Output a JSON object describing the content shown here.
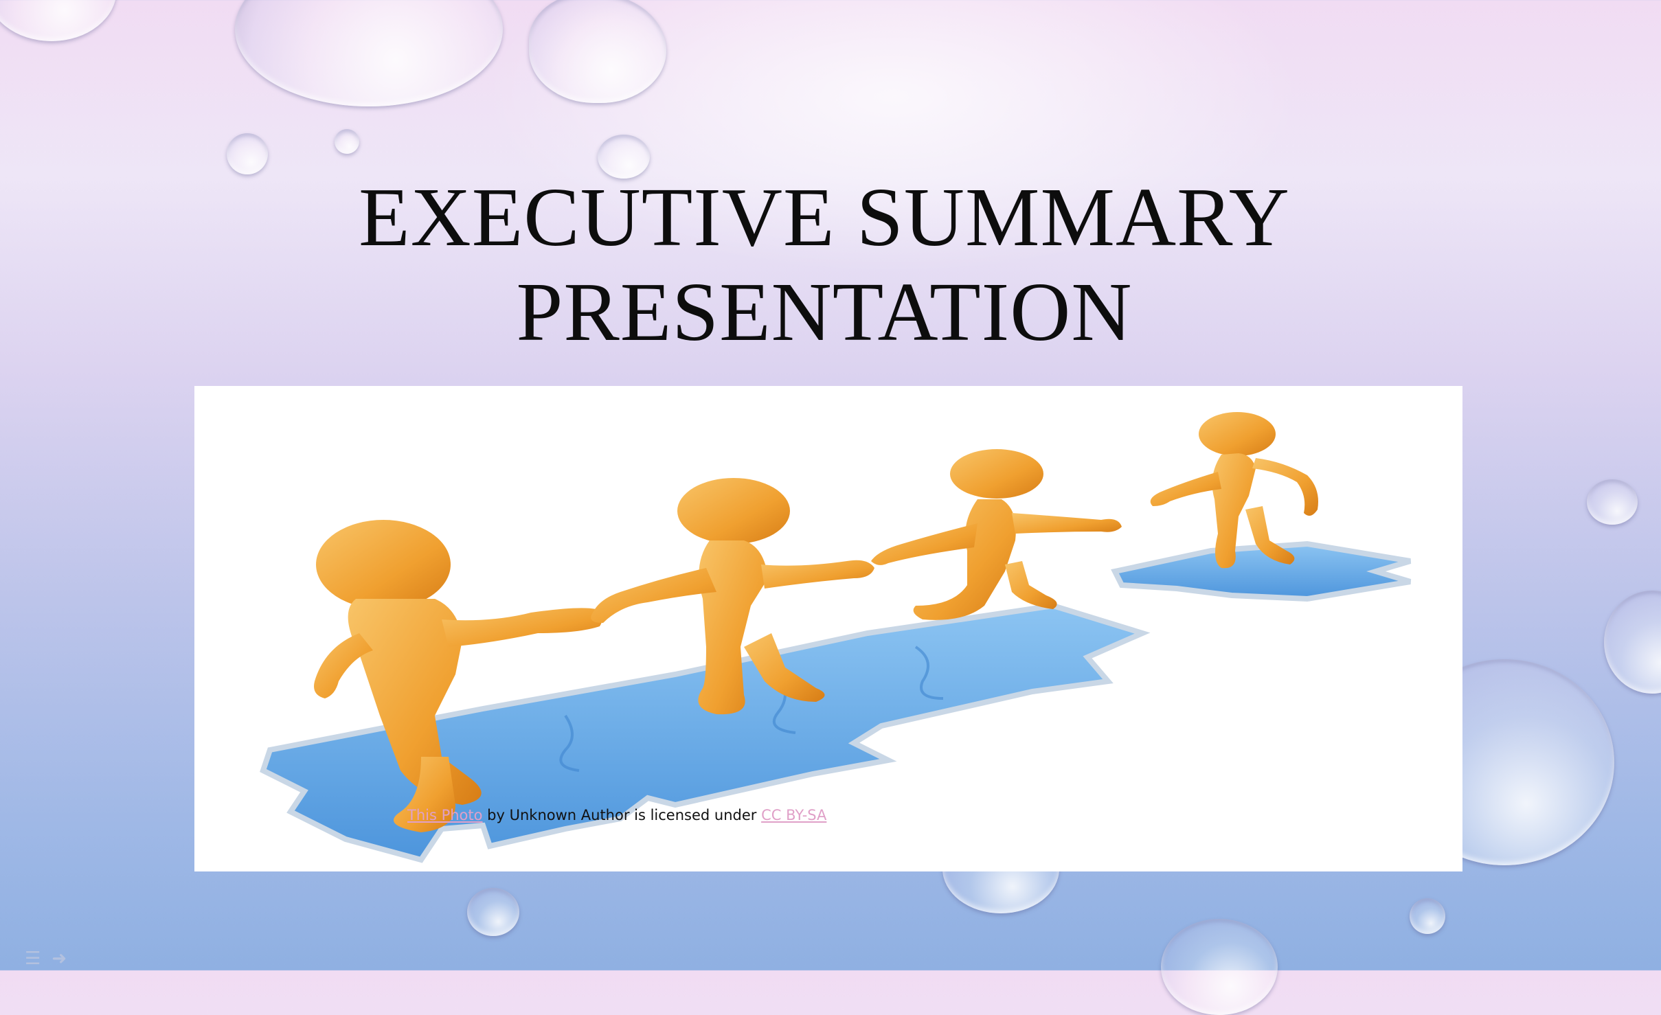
{
  "slide": {
    "title_line1": "EXECUTIVE SUMMARY",
    "title_line2": "PRESENTATION"
  },
  "image_caption": {
    "link_text": "This Photo",
    "middle_text": " by Unknown Author is licensed under ",
    "license_text": "CC BY-SA"
  },
  "colors": {
    "figure_orange": "#f2a033",
    "puzzle_blue": "#6fb0ea",
    "link_pink": "#e0a0c8"
  }
}
